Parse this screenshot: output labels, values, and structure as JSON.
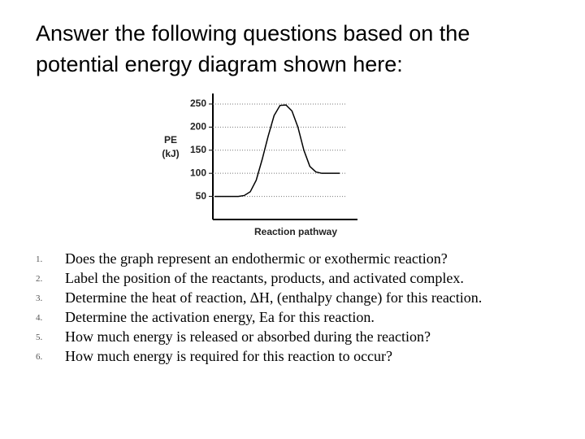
{
  "title": [
    "Answer the following questions based on the",
    "potential energy diagram shown here:"
  ],
  "chart_data": {
    "type": "line",
    "y_label": [
      "PE",
      "(kJ)"
    ],
    "x_label": "Reaction pathway",
    "categories": [
      null,
      null,
      null,
      null,
      null,
      null,
      null,
      null,
      null,
      null,
      null,
      null,
      null,
      null,
      null,
      null,
      null,
      null,
      null,
      null,
      null,
      null
    ],
    "series": [
      {
        "color": "#000000",
        "values": [
          50,
          50,
          50,
          50,
          50,
          52,
          60,
          85,
          130,
          180,
          225,
          247,
          248,
          235,
          200,
          150,
          115,
          103,
          100,
          100,
          100,
          100
        ]
      }
    ],
    "ylim": [
      0,
      264
    ],
    "yticks": [
      50,
      100,
      150,
      200,
      250
    ],
    "grid": true
  },
  "questions": [
    {
      "number": "1.",
      "text": "Does the graph represent an endothermic or exothermic reaction?"
    },
    {
      "number": "2.",
      "text": "Label the position of the reactants, products, and activated complex."
    },
    {
      "number": "3.",
      "text": "Determine the heat of reaction, ∆H, (enthalpy change) for this reaction."
    },
    {
      "number": "4.",
      "text": "Determine the activation energy, Ea for this reaction."
    },
    {
      "number": "5.",
      "text": "How much energy is released or absorbed during the reaction?"
    },
    {
      "number": "6.",
      "text": "How much energy is required for this reaction to occur?"
    }
  ]
}
